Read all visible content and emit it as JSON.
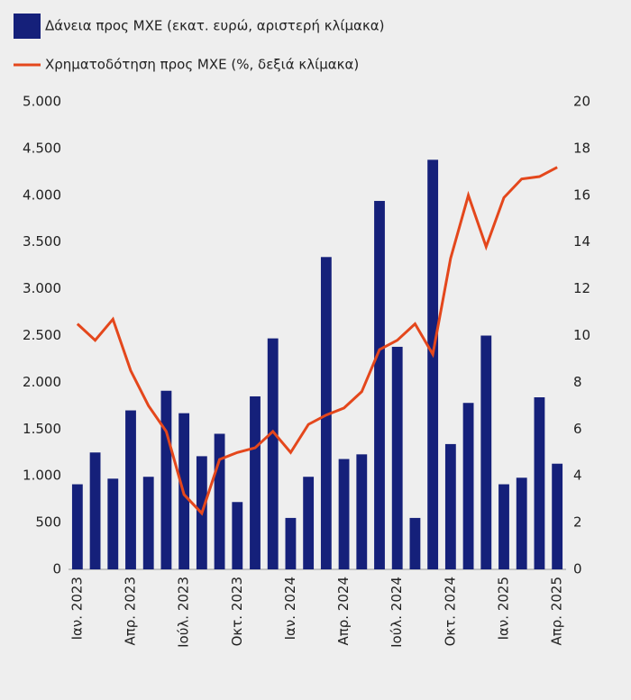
{
  "chart_data": {
    "type": "bar_line",
    "categories": [
      "Ιαν. 2023",
      null,
      null,
      "Απρ. 2023",
      null,
      null,
      "Ιούλ. 2023",
      null,
      null,
      "Οκτ. 2023",
      null,
      null,
      "Ιαν. 2024",
      null,
      null,
      "Απρ. 2024",
      null,
      null,
      "Ιούλ. 2024",
      null,
      null,
      "Οκτ. 2024",
      null,
      null,
      "Ιαν. 2025",
      null,
      null,
      "Απρ. 2025"
    ],
    "series": [
      {
        "name": "Δάνεια προς ΜΧΕ (εκατ. ευρώ, αριστερή κλίμακα)",
        "type": "bar",
        "color": "#15207a",
        "values": [
          910,
          1250,
          970,
          1700,
          990,
          1910,
          1670,
          1210,
          1450,
          720,
          1850,
          2470,
          550,
          990,
          3340,
          1180,
          1230,
          3940,
          2380,
          550,
          4380,
          1340,
          1780,
          2500,
          910,
          980,
          1840,
          1130
        ]
      },
      {
        "name": "Χρηματοδότηση προς ΜΧΕ (%, δεξιά κλίμακα)",
        "type": "line",
        "axis": "y2",
        "color": "#e4471c",
        "values": [
          10.5,
          9.8,
          10.7,
          8.5,
          7.0,
          5.9,
          3.2,
          2.4,
          4.7,
          5.0,
          5.2,
          5.9,
          5.0,
          6.2,
          6.6,
          6.9,
          7.6,
          9.4,
          9.8,
          10.5,
          9.2,
          13.3,
          16.0,
          13.8,
          15.9,
          16.7,
          16.8,
          17.2
        ]
      }
    ],
    "ylim": [
      0,
      5000
    ],
    "yticks": [
      0,
      500,
      {
        "value": 1000,
        "label": "1.000"
      },
      {
        "value": 1500,
        "label": "1.500"
      },
      {
        "value": 2000,
        "label": "2.000"
      },
      {
        "value": 2500,
        "label": "2.500"
      },
      {
        "value": 3000,
        "label": "3.000"
      },
      {
        "value": 3500,
        "label": "3.500"
      },
      {
        "value": 4000,
        "label": "4.000"
      },
      {
        "value": 4500,
        "label": "4.500"
      },
      {
        "value": 5000,
        "label": "5.000"
      }
    ],
    "y2lim": [
      0,
      20
    ],
    "y2ticks": [
      0,
      2,
      4,
      6,
      8,
      10,
      12,
      14,
      16,
      18,
      20
    ]
  }
}
